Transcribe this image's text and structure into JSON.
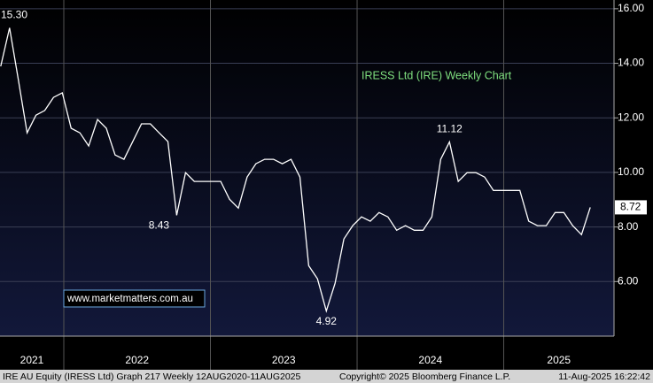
{
  "chart_data": {
    "type": "line",
    "title": "IRESS Ltd (IRE) Weekly Chart",
    "watermark": "www.marketmatters.com.au",
    "annotations": [
      "15.30",
      "8.43",
      "4.92",
      "11.12"
    ],
    "last_label": "8.72",
    "footer": [
      "IRE AU Equity (IRESS Ltd) Graph 217  Weekly 12AUG2020-11AUG2025",
      "Copyright© 2025 Bloomberg Finance L.P.",
      "11-Aug-2025 16:22:42"
    ],
    "xlim": [
      2021.565,
      2025.752
    ],
    "xticks": [
      2022,
      2023,
      2024,
      2025
    ],
    "year_labels": [
      2021,
      2022,
      2023,
      2024,
      2025
    ],
    "ylim": [
      4,
      16.32
    ],
    "yticks": [
      {
        "value": 6,
        "label": "6.00"
      },
      {
        "value": 8,
        "label": "8.00"
      },
      {
        "value": 10,
        "label": "10.00"
      },
      {
        "value": 12,
        "label": "12.00"
      },
      {
        "value": 14,
        "label": "14.00"
      },
      {
        "value": 16,
        "label": "16.00"
      }
    ],
    "grid": true,
    "color": "#ffffff",
    "x": [
      2021.57,
      2021.63,
      2021.69,
      2021.75,
      2021.81,
      2021.87,
      2021.93,
      2021.99,
      2022.05,
      2022.11,
      2022.17,
      2022.23,
      2022.29,
      2022.35,
      2022.41,
      2022.47,
      2022.53,
      2022.59,
      2022.65,
      2022.71,
      2022.77,
      2022.83,
      2022.89,
      2022.95,
      2023.01,
      2023.07,
      2023.13,
      2023.19,
      2023.25,
      2023.31,
      2023.37,
      2023.43,
      2023.49,
      2023.55,
      2023.61,
      2023.67,
      2023.73,
      2023.79,
      2023.85,
      2023.91,
      2023.97,
      2024.03,
      2024.09,
      2024.15,
      2024.21,
      2024.27,
      2024.33,
      2024.39,
      2024.45,
      2024.51,
      2024.57,
      2024.63,
      2024.69,
      2024.75,
      2024.81,
      2024.87,
      2024.93,
      2024.99,
      2025.05,
      2025.11,
      2025.17,
      2025.23,
      2025.29,
      2025.35,
      2025.41,
      2025.47,
      2025.53,
      2025.59
    ],
    "values": [
      13.89,
      15.3,
      13.4,
      11.45,
      12.1,
      12.27,
      12.75,
      12.92,
      11.62,
      11.45,
      10.97,
      11.94,
      11.62,
      10.64,
      10.48,
      11.13,
      11.78,
      11.78,
      11.45,
      11.13,
      8.43,
      9.99,
      9.67,
      9.67,
      9.67,
      9.67,
      9.02,
      8.69,
      9.83,
      10.32,
      10.48,
      10.48,
      10.32,
      10.48,
      9.83,
      6.58,
      6.1,
      4.92,
      5.94,
      7.56,
      8.05,
      8.37,
      8.21,
      8.53,
      8.37,
      7.88,
      8.05,
      7.88,
      7.88,
      8.37,
      10.48,
      11.12,
      9.67,
      9.99,
      9.99,
      9.83,
      9.34,
      9.34,
      9.34,
      9.34,
      8.21,
      8.05,
      8.05,
      8.53,
      8.53,
      8.05,
      7.72,
      8.72
    ]
  }
}
